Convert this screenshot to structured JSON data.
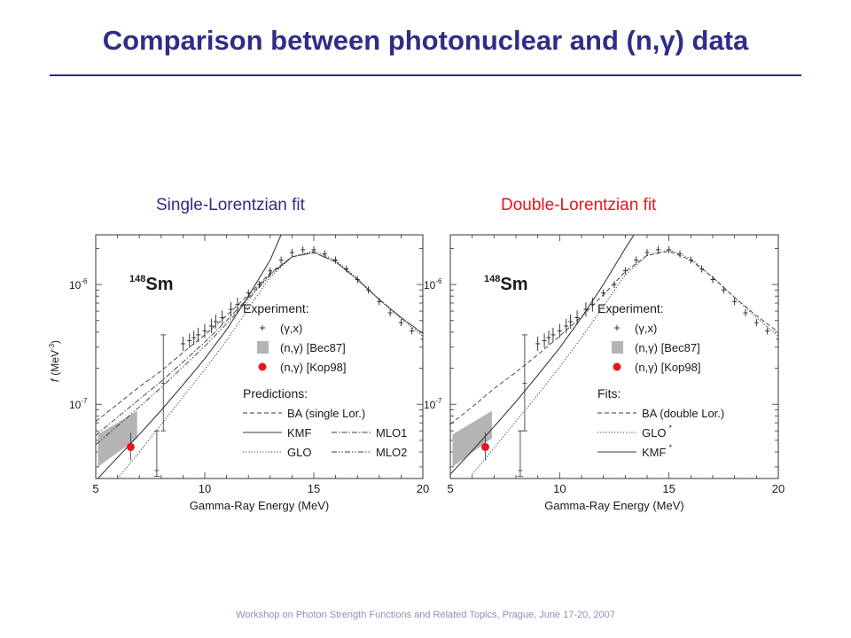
{
  "slide": {
    "title": "Comparison between photonuclear and (n,γ) data",
    "footer": "Workshop on Photon Strength Functions and Related Topics, Prague, June 17-20, 2007",
    "title_color": "#2e2e86",
    "accent_red": "#e8141c"
  },
  "chart_data": [
    {
      "type": "line",
      "subtitle": "Single-Lorentzian fit",
      "nucleus_mass": "148",
      "nucleus_symbol": "Sm",
      "xlabel": "Gamma-Ray Energy (MeV)",
      "ylabel_f": "f",
      "ylabel_unit": "(MeV",
      "ylabel_exp": "-3",
      "ylabel_close": ")",
      "xlim": [
        5,
        20
      ],
      "ylim": [
        2.4e-08,
        2.6e-06
      ],
      "yscale": "log",
      "x_ticks": [
        "5",
        "10",
        "15",
        "20"
      ],
      "y_ticks": [
        {
          "value": 1e-06,
          "base": "10",
          "exp": "-6"
        },
        {
          "value": 1e-07,
          "base": "10",
          "exp": "-7"
        }
      ],
      "legend_sections": [
        {
          "heading": "Experiment:",
          "entries": [
            {
              "key": "gx",
              "marker": "cross",
              "label": "(γ,x)"
            },
            {
              "key": "bec",
              "marker": "box",
              "label": "(n,γ) [Bec87]"
            },
            {
              "key": "kop",
              "marker": "dot",
              "label": "(n,γ) [Kop98]"
            }
          ]
        },
        {
          "heading": "Predictions:",
          "entries": [
            {
              "key": "ba",
              "marker": "dashed",
              "label": "BA (single Lor.)"
            },
            {
              "key": "kmf",
              "marker": "solid",
              "label": "KMF"
            },
            {
              "key": "mlo1",
              "marker": "dashdot",
              "label": "MLO1"
            },
            {
              "key": "glo",
              "marker": "dotted",
              "label": "GLO"
            },
            {
              "key": "mlo2",
              "marker": "dashdotdot",
              "label": "MLO2"
            }
          ]
        }
      ],
      "series": [
        {
          "key": "ba",
          "style": "dashed",
          "x": [
            5,
            6,
            7,
            8,
            9,
            10,
            11,
            12,
            13,
            14,
            15,
            16,
            17,
            18,
            19,
            20
          ],
          "y": [
            7.2e-08,
            1e-07,
            1.4e-07,
            1.9e-07,
            2.7e-07,
            3.8e-07,
            5.5e-07,
            8.2e-07,
            1.25e-06,
            1.7e-06,
            1.85e-06,
            1.55e-06,
            1.1e-06,
            7.5e-07,
            5.3e-07,
            3.9e-07
          ]
        },
        {
          "key": "kmf",
          "style": "solid",
          "x": [
            5,
            6,
            7,
            8,
            9,
            10,
            11,
            12,
            13,
            13.5
          ],
          "y": [
            2.3e-08,
            3.6e-08,
            5.6e-08,
            8.9e-08,
            1.45e-07,
            2.4e-07,
            4.2e-07,
            8e-07,
            1.6e-06,
            2.6e-06
          ]
        },
        {
          "key": "glo",
          "style": "dotted",
          "x": [
            6,
            7,
            8,
            9,
            10,
            11,
            12,
            13,
            14,
            15,
            16,
            17,
            18,
            19,
            20
          ],
          "y": [
            2.4e-08,
            4e-08,
            6.8e-08,
            1.15e-07,
            1.95e-07,
            3.4e-07,
            6.3e-07,
            1.15e-06,
            1.7e-06,
            1.9e-06,
            1.6e-06,
            1.12e-06,
            7.5e-07,
            5.2e-07,
            3.7e-07
          ]
        },
        {
          "key": "mlo1",
          "style": "dashdot",
          "x": [
            5,
            6,
            7,
            8,
            9,
            10,
            11,
            12,
            13,
            14,
            15,
            16,
            17,
            18,
            19,
            20
          ],
          "y": [
            5.5e-08,
            7.8e-08,
            1.1e-07,
            1.55e-07,
            2.25e-07,
            3.3e-07,
            5e-07,
            7.8e-07,
            1.22e-06,
            1.7e-06,
            1.85e-06,
            1.55e-06,
            1.1e-06,
            7.5e-07,
            5.3e-07,
            3.9e-07
          ]
        },
        {
          "key": "mlo2",
          "style": "dashdotdot",
          "x": [
            5,
            6,
            7,
            8,
            9,
            10,
            11,
            12,
            13,
            14,
            15,
            16,
            17,
            18,
            19,
            20
          ],
          "y": [
            4.6e-08,
            6.6e-08,
            9.5e-08,
            1.38e-07,
            2.05e-07,
            3.05e-07,
            4.7e-07,
            7.5e-07,
            1.2e-06,
            1.7e-06,
            1.85e-06,
            1.55e-06,
            1.1e-06,
            7.5e-07,
            5.3e-07,
            3.9e-07
          ]
        }
      ],
      "photonuclear_points": {
        "x": [
          9.0,
          9.3,
          9.5,
          9.7,
          10.0,
          10.3,
          10.5,
          10.8,
          11.2,
          11.5,
          12.0,
          12.5,
          13.0,
          13.5,
          14.0,
          14.5,
          15.0,
          15.5,
          16.0,
          16.5,
          17.0,
          17.5,
          18.0,
          18.5,
          19.0,
          19.5,
          20.0
        ],
        "y": [
          3.2e-07,
          3.4e-07,
          3.6e-07,
          3.8e-07,
          4.1e-07,
          4.5e-07,
          4.9e-07,
          5.3e-07,
          6.2e-07,
          6.8e-07,
          8.5e-07,
          1e-06,
          1.3e-06,
          1.6e-06,
          1.85e-06,
          1.95e-06,
          1.95e-06,
          1.8e-06,
          1.6e-06,
          1.35e-06,
          1.1e-06,
          9e-07,
          7.2e-07,
          5.8e-07,
          4.8e-07,
          4.1e-07,
          3.5e-07
        ]
      },
      "isolated_errorbars": [
        {
          "x": 8.1,
          "y": 1.5e-07,
          "low": 6e-08,
          "high": 3.8e-07
        },
        {
          "x": 7.8,
          "y": 2.8e-08,
          "low": 2.5e-08,
          "high": 6e-08
        }
      ],
      "bec87_band": [
        [
          5.1,
          3e-08
        ],
        [
          5.1,
          5.6e-08
        ],
        [
          6.9,
          8.8e-08
        ],
        [
          6.9,
          5.2e-08
        ]
      ],
      "kop98_point": {
        "x": 6.6,
        "y": 4.4e-08,
        "low": 3.4e-08,
        "high": 5.8e-08
      }
    },
    {
      "type": "line",
      "subtitle": "Double-Lorentzian fit",
      "nucleus_mass": "148",
      "nucleus_symbol": "Sm",
      "xlabel": "Gamma-Ray Energy (MeV)",
      "xlim": [
        5,
        20
      ],
      "ylim": [
        2.4e-08,
        2.6e-06
      ],
      "yscale": "log",
      "x_ticks": [
        "5",
        "10",
        "15",
        "20"
      ],
      "y_ticks": [
        {
          "value": 1e-06,
          "base": "10",
          "exp": "-6"
        },
        {
          "value": 1e-07,
          "base": "10",
          "exp": "-7"
        }
      ],
      "legend_sections": [
        {
          "heading": "Experiment:",
          "entries": [
            {
              "key": "gx",
              "marker": "cross",
              "label": "(γ,x)"
            },
            {
              "key": "bec",
              "marker": "box",
              "label": "(n,γ) [Bec87]"
            },
            {
              "key": "kop",
              "marker": "dot",
              "label": "(n,γ) [Kop98]"
            }
          ]
        },
        {
          "heading": "Fits:",
          "entries": [
            {
              "key": "ba",
              "marker": "dashed",
              "label": "BA (double Lor.)"
            },
            {
              "key": "glo",
              "marker": "dotted",
              "label": "GLO",
              "sup": "*"
            },
            {
              "key": "kmf",
              "marker": "solid",
              "label": "KMF",
              "sup": "*"
            }
          ]
        }
      ],
      "series": [
        {
          "key": "ba",
          "style": "dashed",
          "x": [
            5,
            6,
            7,
            8,
            9,
            10,
            11,
            12,
            13,
            14,
            15,
            16,
            17,
            18,
            19,
            20
          ],
          "y": [
            6.8e-08,
            9.5e-08,
            1.35e-07,
            1.85e-07,
            2.6e-07,
            3.7e-07,
            5.4e-07,
            8.2e-07,
            1.28e-06,
            1.75e-06,
            1.9e-06,
            1.6e-06,
            1.15e-06,
            7.8e-07,
            5.5e-07,
            4e-07
          ]
        },
        {
          "key": "kmf",
          "style": "solid",
          "x": [
            5,
            6,
            7,
            8,
            9,
            10,
            11,
            12,
            13,
            13.4
          ],
          "y": [
            2.6e-08,
            4.1e-08,
            6.5e-08,
            1.05e-07,
            1.75e-07,
            2.95e-07,
            5.3e-07,
            1e-06,
            2e-06,
            2.6e-06
          ]
        },
        {
          "key": "glo",
          "style": "dotted",
          "x": [
            6,
            7,
            8,
            9,
            10,
            11,
            12,
            13,
            14,
            15,
            16,
            17,
            18,
            19,
            20
          ],
          "y": [
            2.6e-08,
            4.3e-08,
            7.2e-08,
            1.2e-07,
            2.05e-07,
            3.6e-07,
            6.6e-07,
            1.2e-06,
            1.75e-06,
            1.95e-06,
            1.65e-06,
            1.15e-06,
            7.8e-07,
            5.3e-07,
            3.7e-07
          ]
        }
      ],
      "photonuclear_points": {
        "x": [
          9.0,
          9.3,
          9.5,
          9.7,
          10.0,
          10.3,
          10.5,
          10.8,
          11.2,
          11.5,
          12.0,
          12.5,
          13.0,
          13.5,
          14.0,
          14.5,
          15.0,
          15.5,
          16.0,
          16.5,
          17.0,
          17.5,
          18.0,
          18.5,
          19.0,
          19.5,
          20.0
        ],
        "y": [
          3.2e-07,
          3.4e-07,
          3.6e-07,
          3.8e-07,
          4.1e-07,
          4.5e-07,
          4.9e-07,
          5.3e-07,
          6.2e-07,
          6.8e-07,
          8.5e-07,
          1e-06,
          1.3e-06,
          1.6e-06,
          1.85e-06,
          1.95e-06,
          1.95e-06,
          1.8e-06,
          1.6e-06,
          1.35e-06,
          1.1e-06,
          9e-07,
          7.2e-07,
          5.8e-07,
          4.8e-07,
          4.1e-07,
          3.5e-07
        ]
      },
      "isolated_errorbars": [
        {
          "x": 8.4,
          "y": 1.5e-07,
          "low": 6e-08,
          "high": 3.8e-07
        },
        {
          "x": 8.2,
          "y": 2.8e-08,
          "low": 2.5e-08,
          "high": 6e-08
        }
      ],
      "bec87_band": [
        [
          5.1,
          3e-08
        ],
        [
          5.1,
          5.6e-08
        ],
        [
          6.9,
          8.8e-08
        ],
        [
          6.9,
          5.2e-08
        ]
      ],
      "kop98_point": {
        "x": 6.6,
        "y": 4.4e-08,
        "low": 3.4e-08,
        "high": 5.8e-08
      }
    }
  ]
}
